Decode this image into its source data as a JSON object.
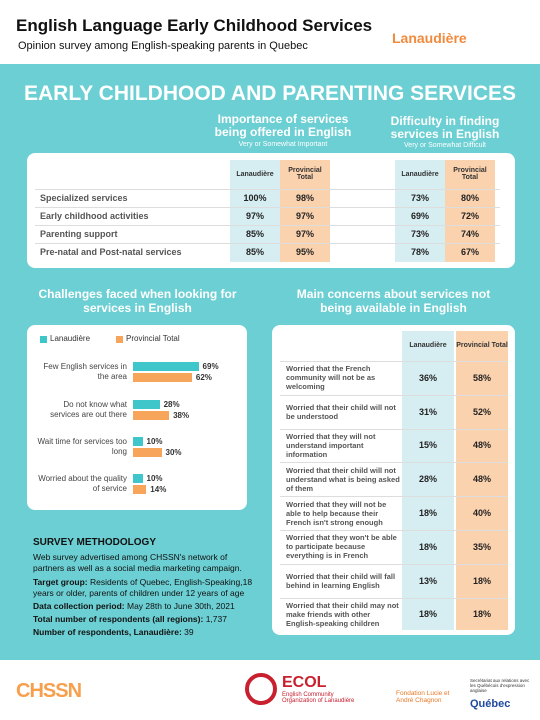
{
  "header": {
    "title": "English Language Early Childhood Services",
    "subtitle": "Opinion survey among English-speaking parents in Quebec",
    "region": "Lanaudière"
  },
  "main_title": "EARLY CHILDHOOD AND PARENTING SERVICES",
  "services_table": {
    "groups": [
      {
        "title": "Importance of services being offered in English",
        "note": "Very or Somewhat Important"
      },
      {
        "title": "Difficulty in finding services in English",
        "note": "Very or Somewhat Difficult"
      }
    ],
    "columns": [
      "Lanaudière",
      "Provincial Total",
      "Lanaudière",
      "Provincial Total"
    ],
    "rows": [
      {
        "label": "Specialized services",
        "values": [
          "100%",
          "98%",
          "73%",
          "80%"
        ]
      },
      {
        "label": "Early childhood activities",
        "values": [
          "97%",
          "97%",
          "69%",
          "72%"
        ]
      },
      {
        "label": "Parenting support",
        "values": [
          "85%",
          "97%",
          "73%",
          "74%"
        ]
      },
      {
        "label": "Pre-natal and Post-natal services",
        "values": [
          "85%",
          "95%",
          "78%",
          "67%"
        ]
      }
    ]
  },
  "chart_data": {
    "type": "bar",
    "orientation": "horizontal",
    "title": "Challenges faced when looking for services in English",
    "categories": [
      "Few English services in the area",
      "Do not know what services are out there",
      "Wait time for services too long",
      "Worried about the quality of service"
    ],
    "series": [
      {
        "name": "Lanaudière",
        "color": "#3ec6cb",
        "values": [
          69,
          28,
          10,
          10
        ],
        "value_labels": [
          "69%",
          "28%",
          "10%",
          "10%"
        ]
      },
      {
        "name": "Provincial Total",
        "color": "#f8a55c",
        "values": [
          62,
          38,
          30,
          14
        ],
        "value_labels": [
          "62%",
          "38%",
          "30%",
          "14%"
        ]
      }
    ]
  },
  "concerns_table": {
    "title": "Main concerns about services not being available in English",
    "columns": [
      "Lanaudière",
      "Provincial Total"
    ],
    "rows": [
      {
        "label": "Worried that the French community will not be as welcoming",
        "values": [
          "36%",
          "58%"
        ]
      },
      {
        "label": "Worried that their child will not be understood",
        "values": [
          "31%",
          "52%"
        ]
      },
      {
        "label": "Worried that they will not understand important information",
        "values": [
          "15%",
          "48%"
        ]
      },
      {
        "label": "Worried that their child will not understand what is being asked of them",
        "values": [
          "28%",
          "48%"
        ]
      },
      {
        "label": "Worried that they will not be able to help because their French isn't strong enough",
        "values": [
          "18%",
          "40%"
        ]
      },
      {
        "label": "Worried that they won't be able to participate because everything is in French",
        "values": [
          "18%",
          "35%"
        ]
      },
      {
        "label": "Worried that their child will fall behind in learning English",
        "values": [
          "13%",
          "18%"
        ]
      },
      {
        "label": "Worried that their child may not make friends with other English-speaking children",
        "values": [
          "18%",
          "18%"
        ]
      }
    ]
  },
  "methodology": {
    "title": "SURVEY METHODOLOGY",
    "intro": "Web survey advertised among CHSSN's network of partners as well as a social media marketing campaign.",
    "items": [
      {
        "label": "Target group:",
        "text": "Residents of Quebec, English-Speaking,18 years or older, parents of children under 12 years of age"
      },
      {
        "label": "Data collection period:",
        "text": "May 28th to June 30th, 2021"
      },
      {
        "label": "Total number of respondents (all regions):",
        "text": "1,737"
      },
      {
        "label": "Number of respondents, Lanaudière:",
        "text": "39"
      }
    ]
  },
  "footer": {
    "logo1": "CHSSN",
    "logo2": "ECOL",
    "logo2_sub": "English Community Organization of Lanaudière",
    "logo3": "Fondation Lucie et André Chagnon",
    "logo4_sub": "Secrétariat aux relations avec les Québécois d'expression anglaise",
    "logo4": "Québec"
  }
}
